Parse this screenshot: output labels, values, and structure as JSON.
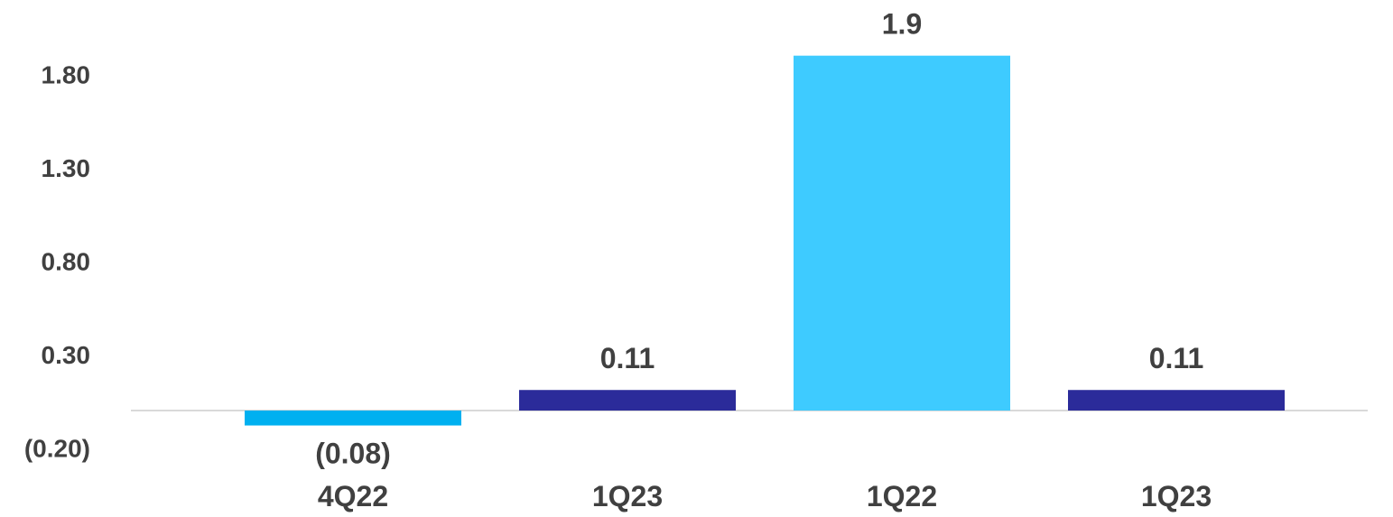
{
  "chart_data": {
    "type": "bar",
    "categories": [
      "4Q22",
      "1Q23",
      "1Q22",
      "1Q23"
    ],
    "values": [
      -0.08,
      0.11,
      1.9,
      0.11
    ],
    "data_labels": [
      "(0.08)",
      "0.11",
      "1.9",
      "0.11"
    ],
    "bar_colors": [
      "#00b0f0",
      "#2b2b9a",
      "#3ecbff",
      "#2b2b9a"
    ],
    "y_ticks": [
      {
        "value": -0.2,
        "label": "(0.20)"
      },
      {
        "value": 0.3,
        "label": "0.30"
      },
      {
        "value": 0.8,
        "label": "0.80"
      },
      {
        "value": 1.3,
        "label": "1.30"
      },
      {
        "value": 1.8,
        "label": "1.80"
      }
    ],
    "ylim": [
      -0.2,
      2.3
    ],
    "grid": false,
    "zero_line_color": "#d9d9d9",
    "text_color": "#404040"
  }
}
